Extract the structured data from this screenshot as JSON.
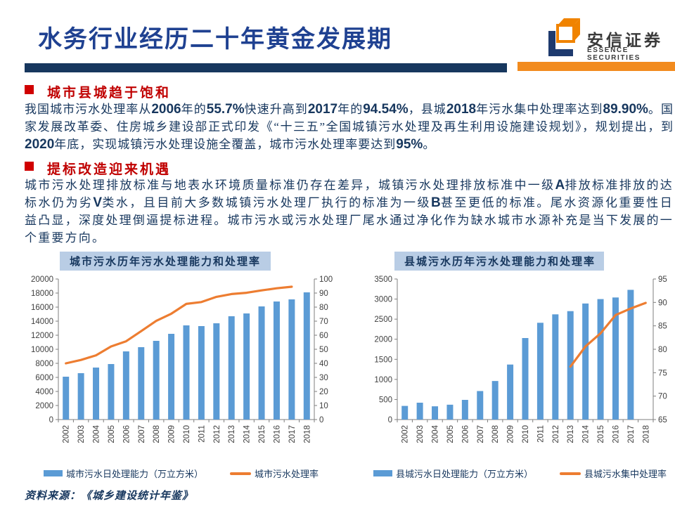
{
  "slide": {
    "title": "水务行业经历二十年黄金发展期",
    "logo": {
      "name_cn": "安信证券",
      "name_en": "ESSENCE SECURITIES"
    },
    "sections": [
      {
        "heading": "城市县城趋于饱和",
        "paragraph_segments": [
          {
            "t": "我国城市污水处理率从"
          },
          {
            "n": "2006"
          },
          {
            "t": "年的"
          },
          {
            "n": "55.7%"
          },
          {
            "t": "快速升高到"
          },
          {
            "n": "2017"
          },
          {
            "t": "年的"
          },
          {
            "n": "94.54%"
          },
          {
            "t": "，县城"
          },
          {
            "n": "2018"
          },
          {
            "t": "年污水集中处理率达到"
          },
          {
            "n": "89.90%"
          },
          {
            "t": "。国家发展改革委、住房城乡建设部正式印发《“十三五”全国城镇污水处理及再生利用设施建设规划》，规划提出，到"
          },
          {
            "n": "2020"
          },
          {
            "t": "年底，实现城镇污水处理设施全覆盖，城市污水处理率要达到"
          },
          {
            "n": "95%"
          },
          {
            "t": "。"
          }
        ]
      },
      {
        "heading": "提标改造迎来机遇",
        "paragraph_segments": [
          {
            "t": "城市污水处理排放标准与地表水环境质量标准仍存在差异，城镇污水处理排放标准中一级"
          },
          {
            "n": "A"
          },
          {
            "t": "排放标准排放的达标水仍为劣"
          },
          {
            "n": "V"
          },
          {
            "t": "类水，且目前大多数城镇污水处理厂执行的标准为一级"
          },
          {
            "n": "B"
          },
          {
            "t": "甚至更低的标准。尾水资源化重要性日益凸显，深度处理倒逼提标进程。城市污水或污水处理厂尾水通过净化作为缺水城市水源补充是当下发展的一个重要方向。"
          }
        ]
      }
    ],
    "source_note": "资料来源：《城乡建设统计年鉴》",
    "colors": {
      "title_blue": "#1F4191",
      "navy": "#17375E",
      "heading_red": "#C00000",
      "logo_orange": "#F28B1E",
      "bar_blue": "#5B9BD5",
      "line_orange": "#ED7D31",
      "chart_title_band": "#B9CDE5"
    }
  },
  "chart_data": [
    {
      "type": "bar-line",
      "title": "城市污水历年污水处理能力和处理率",
      "categories": [
        "2002",
        "2003",
        "2004",
        "2005",
        "2006",
        "2007",
        "2008",
        "2009",
        "2010",
        "2011",
        "2012",
        "2013",
        "2014",
        "2015",
        "2016",
        "2017",
        "2018"
      ],
      "series": [
        {
          "name": "城市污水日处理能力（万立方米）",
          "type": "bar",
          "axis": "left",
          "color": "#5B9BD5",
          "values": [
            6100,
            6600,
            7400,
            7900,
            9700,
            10300,
            11200,
            12200,
            13400,
            13300,
            13700,
            14700,
            15100,
            16100,
            16800,
            17100,
            18100
          ]
        },
        {
          "name": "城市污水处理率",
          "type": "line",
          "axis": "right",
          "color": "#ED7D31",
          "values": [
            40,
            42.4,
            45.7,
            52,
            55.7,
            62.9,
            70.2,
            75.3,
            82.3,
            83.6,
            87.3,
            89.3,
            90.2,
            91.9,
            93.4,
            94.5,
            null
          ]
        }
      ],
      "left_axis": {
        "min": 0,
        "max": 20000,
        "step": 2000
      },
      "right_axis": {
        "min": 0,
        "max": 100,
        "step": 10
      },
      "grid": false,
      "legend_position": "bottom"
    },
    {
      "type": "bar-line",
      "title": "县城污水历年污水处理能力和处理率",
      "categories": [
        "2002",
        "2003",
        "2004",
        "2005",
        "2006",
        "2007",
        "2008",
        "2009",
        "2010",
        "2011",
        "2012",
        "2013",
        "2014",
        "2015",
        "2016",
        "2017",
        "2018"
      ],
      "series": [
        {
          "name": "县城污水日处理能力（万立方米）",
          "type": "bar",
          "axis": "left",
          "color": "#5B9BD5",
          "values": [
            340,
            420,
            330,
            370,
            490,
            710,
            960,
            1370,
            2030,
            2410,
            2620,
            2700,
            2890,
            3000,
            3040,
            3230,
            null
          ]
        },
        {
          "name": "县城污水集中处理率",
          "type": "line",
          "axis": "right",
          "color": "#ED7D31",
          "values": [
            null,
            null,
            null,
            null,
            null,
            null,
            null,
            null,
            null,
            null,
            null,
            76.3,
            80.6,
            83.4,
            87.3,
            88.7,
            89.9
          ]
        }
      ],
      "left_axis": {
        "min": 0,
        "max": 3500,
        "step": 500
      },
      "right_axis": {
        "min": 65,
        "max": 95,
        "step": 5
      },
      "grid": false,
      "legend_position": "bottom"
    }
  ]
}
